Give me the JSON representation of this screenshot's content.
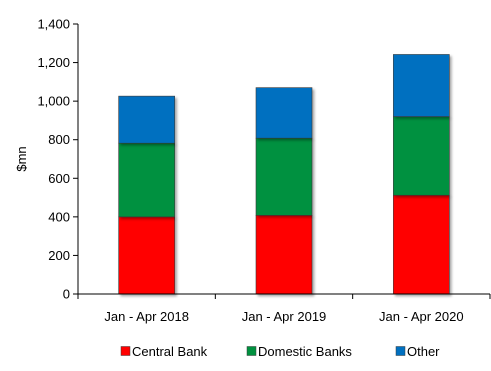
{
  "chart_data": {
    "type": "bar",
    "stacked": true,
    "title": "",
    "xlabel": "",
    "ylabel": "$mn",
    "ylim": [
      0,
      1400
    ],
    "yticks": [
      0,
      200,
      400,
      600,
      800,
      1000,
      1200,
      1400
    ],
    "ytick_labels": [
      "0",
      "200",
      "400",
      "600",
      "800",
      "1,000",
      "1,200",
      "1,400"
    ],
    "grid": false,
    "legend_position": "bottom",
    "categories": [
      "Jan - Apr 2018",
      "Jan - Apr 2019",
      "Jan - Apr 2020"
    ],
    "series": [
      {
        "name": "Central Bank",
        "color": "#ff0000",
        "values": [
          400,
          408,
          512
        ]
      },
      {
        "name": "Domestic Banks",
        "color": "#00913f",
        "values": [
          382,
          400,
          408
        ]
      },
      {
        "name": "Other",
        "color": "#0070c0",
        "values": [
          244,
          262,
          322
        ]
      }
    ]
  }
}
